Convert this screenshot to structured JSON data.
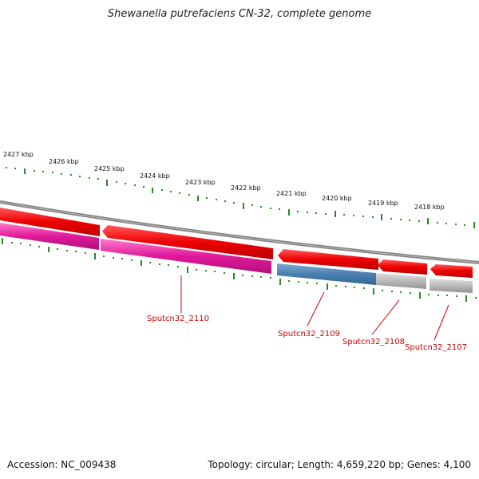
{
  "title": "Shewanella putrefaciens CN-32, complete genome",
  "footer": {
    "accession": "Accession: NC_009438",
    "summary": "Topology: circular; Length: 4,659,220 bp; Genes: 4,100"
  },
  "scale_labels": [
    "2427 kbp",
    "2426 kbp",
    "2425 kbp",
    "2424 kbp",
    "2423 kbp",
    "2422 kbp",
    "2421 kbp",
    "2420 kbp",
    "2419 kbp",
    "2418 kbp"
  ],
  "gene_labels": [
    "Sputcn32_2110",
    "Sputcn32_2109",
    "Sputcn32_2108",
    "Sputcn32_2107"
  ],
  "colors": {
    "gene_red": "#ee0000",
    "cds_magenta": "#e0199a",
    "cds_blue": "#4a7fb0",
    "cds_gray": "#b9b9b9",
    "backbone": "#808080",
    "tick_green": "#228b22",
    "label_red": "#cc0000"
  }
}
